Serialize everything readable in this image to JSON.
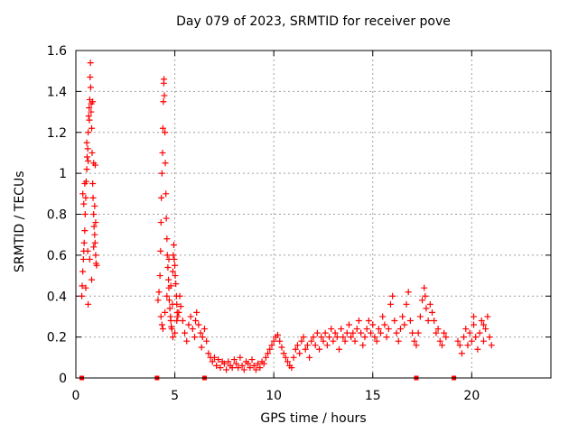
{
  "chart_data": {
    "type": "scatter",
    "title": "Day 079 of 2023, SRMTID for receiver pove",
    "xlabel": "GPS time / hours",
    "ylabel": "SRMTID / TECUs",
    "xlim": [
      0,
      24
    ],
    "ylim": [
      0,
      1.6
    ],
    "xticks": [
      0,
      5,
      10,
      15,
      20
    ],
    "xtick_labels": [
      "0",
      "5",
      "10",
      "15",
      "20"
    ],
    "yticks": [
      0,
      0.2,
      0.4,
      0.6,
      0.8,
      1,
      1.2,
      1.4,
      1.6
    ],
    "ytick_labels": [
      "0",
      "0.2",
      "0.4",
      "0.6",
      "0.8",
      "1",
      "1.2",
      "1.4",
      "1.6"
    ],
    "grid": true,
    "marker": "+",
    "series_color": "#ff0000",
    "baseline_markers_x": [
      0.3,
      4.1,
      6.5,
      17.2,
      19.1
    ],
    "series": [
      {
        "name": "SRMTID",
        "points": [
          [
            0.3,
            0.4
          ],
          [
            0.32,
            0.45
          ],
          [
            0.35,
            0.52
          ],
          [
            0.38,
            0.58
          ],
          [
            0.4,
            0.62
          ],
          [
            0.42,
            0.66
          ],
          [
            0.45,
            0.72
          ],
          [
            0.47,
            0.8
          ],
          [
            0.5,
            0.88
          ],
          [
            0.52,
            0.96
          ],
          [
            0.55,
            1.02
          ],
          [
            0.57,
            1.08
          ],
          [
            0.6,
            1.12
          ],
          [
            0.62,
            1.2
          ],
          [
            0.65,
            1.28
          ],
          [
            0.67,
            1.32
          ],
          [
            0.7,
            1.36
          ],
          [
            0.72,
            1.47
          ],
          [
            0.74,
            1.54
          ],
          [
            0.75,
            1.42
          ],
          [
            0.77,
            1.3
          ],
          [
            0.8,
            1.22
          ],
          [
            0.82,
            1.1
          ],
          [
            0.85,
            0.95
          ],
          [
            0.87,
            0.88
          ],
          [
            0.9,
            0.8
          ],
          [
            0.92,
            0.74
          ],
          [
            0.95,
            0.7
          ],
          [
            0.97,
            0.66
          ],
          [
            1.0,
            0.6
          ],
          [
            1.02,
            0.56
          ],
          [
            1.05,
            0.55
          ],
          [
            0.35,
            0.9
          ],
          [
            0.45,
            0.95
          ],
          [
            0.55,
            1.15
          ],
          [
            0.62,
            1.06
          ],
          [
            0.68,
            1.26
          ],
          [
            0.78,
            1.34
          ],
          [
            0.85,
            1.35
          ],
          [
            0.9,
            1.05
          ],
          [
            0.95,
            0.84
          ],
          [
            1.0,
            0.76
          ],
          [
            0.6,
            0.62
          ],
          [
            0.7,
            0.58
          ],
          [
            0.8,
            0.48
          ],
          [
            0.5,
            0.44
          ],
          [
            0.62,
            0.36
          ],
          [
            0.9,
            0.64
          ],
          [
            0.98,
            1.04
          ],
          [
            0.4,
            0.85
          ],
          [
            4.15,
            0.38
          ],
          [
            4.2,
            0.42
          ],
          [
            4.25,
            0.5
          ],
          [
            4.28,
            0.62
          ],
          [
            4.3,
            0.76
          ],
          [
            4.32,
            0.88
          ],
          [
            4.35,
            1.0
          ],
          [
            4.38,
            1.1
          ],
          [
            4.4,
            1.22
          ],
          [
            4.42,
            1.35
          ],
          [
            4.44,
            1.44
          ],
          [
            4.45,
            1.46
          ],
          [
            4.47,
            1.38
          ],
          [
            4.5,
            1.2
          ],
          [
            4.52,
            1.05
          ],
          [
            4.55,
            0.9
          ],
          [
            4.57,
            0.78
          ],
          [
            4.6,
            0.68
          ],
          [
            4.62,
            0.6
          ],
          [
            4.65,
            0.54
          ],
          [
            4.68,
            0.48
          ],
          [
            4.7,
            0.44
          ],
          [
            4.72,
            0.38
          ],
          [
            4.75,
            0.34
          ],
          [
            4.78,
            0.3
          ],
          [
            4.8,
            0.28
          ],
          [
            4.82,
            0.25
          ],
          [
            4.85,
            0.24
          ],
          [
            4.88,
            0.36
          ],
          [
            4.9,
            0.52
          ],
          [
            4.92,
            0.6
          ],
          [
            4.95,
            0.65
          ],
          [
            4.97,
            0.58
          ],
          [
            5.0,
            0.55
          ],
          [
            5.02,
            0.5
          ],
          [
            5.05,
            0.46
          ],
          [
            5.08,
            0.4
          ],
          [
            5.1,
            0.36
          ],
          [
            5.12,
            0.32
          ],
          [
            5.15,
            0.3
          ],
          [
            4.3,
            0.3
          ],
          [
            4.35,
            0.26
          ],
          [
            4.4,
            0.24
          ],
          [
            4.5,
            0.32
          ],
          [
            4.6,
            0.4
          ],
          [
            4.7,
            0.58
          ],
          [
            4.8,
            0.45
          ],
          [
            4.9,
            0.2
          ],
          [
            5.0,
            0.22
          ],
          [
            5.1,
            0.28
          ],
          [
            5.2,
            0.32
          ],
          [
            5.25,
            0.4
          ],
          [
            5.3,
            0.35
          ],
          [
            5.4,
            0.28
          ],
          [
            5.5,
            0.22
          ],
          [
            5.6,
            0.18
          ],
          [
            5.7,
            0.26
          ],
          [
            5.8,
            0.3
          ],
          [
            5.9,
            0.24
          ],
          [
            6.0,
            0.2
          ],
          [
            6.05,
            0.28
          ],
          [
            6.1,
            0.32
          ],
          [
            6.2,
            0.26
          ],
          [
            6.3,
            0.22
          ],
          [
            6.35,
            0.15
          ],
          [
            6.4,
            0.2
          ],
          [
            6.5,
            0.24
          ],
          [
            6.6,
            0.18
          ],
          [
            6.7,
            0.12
          ],
          [
            6.8,
            0.1
          ],
          [
            6.9,
            0.08
          ],
          [
            7.0,
            0.1
          ],
          [
            7.1,
            0.06
          ],
          [
            7.2,
            0.09
          ],
          [
            7.3,
            0.05
          ],
          [
            7.4,
            0.08
          ],
          [
            7.5,
            0.07
          ],
          [
            7.6,
            0.04
          ],
          [
            7.7,
            0.08
          ],
          [
            7.8,
            0.06
          ],
          [
            7.9,
            0.05
          ],
          [
            8.0,
            0.09
          ],
          [
            8.1,
            0.07
          ],
          [
            8.2,
            0.05
          ],
          [
            8.3,
            0.1
          ],
          [
            8.4,
            0.06
          ],
          [
            8.5,
            0.04
          ],
          [
            8.6,
            0.08
          ],
          [
            8.7,
            0.07
          ],
          [
            8.8,
            0.05
          ],
          [
            8.9,
            0.09
          ],
          [
            9.0,
            0.06
          ],
          [
            9.1,
            0.04
          ],
          [
            9.2,
            0.07
          ],
          [
            9.3,
            0.05
          ],
          [
            9.4,
            0.08
          ],
          [
            9.5,
            0.07
          ],
          [
            9.6,
            0.1
          ],
          [
            9.7,
            0.12
          ],
          [
            9.8,
            0.14
          ],
          [
            9.9,
            0.16
          ],
          [
            10.0,
            0.18
          ],
          [
            10.1,
            0.2
          ],
          [
            10.2,
            0.21
          ],
          [
            10.3,
            0.18
          ],
          [
            10.4,
            0.15
          ],
          [
            10.5,
            0.12
          ],
          [
            10.6,
            0.1
          ],
          [
            10.7,
            0.08
          ],
          [
            10.8,
            0.06
          ],
          [
            10.9,
            0.05
          ],
          [
            11.0,
            0.1
          ],
          [
            11.1,
            0.14
          ],
          [
            11.2,
            0.16
          ],
          [
            11.3,
            0.12
          ],
          [
            11.4,
            0.18
          ],
          [
            11.5,
            0.2
          ],
          [
            11.6,
            0.14
          ],
          [
            11.7,
            0.16
          ],
          [
            11.8,
            0.1
          ],
          [
            11.9,
            0.18
          ],
          [
            12.0,
            0.2
          ],
          [
            12.1,
            0.16
          ],
          [
            12.2,
            0.22
          ],
          [
            12.3,
            0.14
          ],
          [
            12.4,
            0.2
          ],
          [
            12.5,
            0.18
          ],
          [
            12.6,
            0.22
          ],
          [
            12.7,
            0.16
          ],
          [
            12.8,
            0.2
          ],
          [
            12.9,
            0.24
          ],
          [
            13.0,
            0.18
          ],
          [
            13.1,
            0.22
          ],
          [
            13.2,
            0.2
          ],
          [
            13.3,
            0.14
          ],
          [
            13.4,
            0.24
          ],
          [
            13.5,
            0.2
          ],
          [
            13.6,
            0.18
          ],
          [
            13.7,
            0.22
          ],
          [
            13.8,
            0.26
          ],
          [
            13.9,
            0.2
          ],
          [
            14.0,
            0.22
          ],
          [
            14.1,
            0.18
          ],
          [
            14.2,
            0.24
          ],
          [
            14.3,
            0.28
          ],
          [
            14.4,
            0.22
          ],
          [
            14.5,
            0.16
          ],
          [
            14.6,
            0.2
          ],
          [
            14.7,
            0.24
          ],
          [
            14.8,
            0.28
          ],
          [
            14.9,
            0.22
          ],
          [
            15.0,
            0.26
          ],
          [
            15.1,
            0.2
          ],
          [
            15.2,
            0.18
          ],
          [
            15.3,
            0.24
          ],
          [
            15.4,
            0.22
          ],
          [
            15.5,
            0.3
          ],
          [
            15.6,
            0.26
          ],
          [
            15.7,
            0.2
          ],
          [
            15.8,
            0.24
          ],
          [
            15.9,
            0.36
          ],
          [
            16.0,
            0.4
          ],
          [
            16.1,
            0.28
          ],
          [
            16.2,
            0.22
          ],
          [
            16.3,
            0.18
          ],
          [
            16.4,
            0.24
          ],
          [
            16.5,
            0.3
          ],
          [
            16.6,
            0.26
          ],
          [
            16.7,
            0.36
          ],
          [
            16.8,
            0.42
          ],
          [
            16.9,
            0.28
          ],
          [
            17.0,
            0.22
          ],
          [
            17.1,
            0.18
          ],
          [
            17.2,
            0.16
          ],
          [
            17.3,
            0.22
          ],
          [
            17.4,
            0.3
          ],
          [
            17.5,
            0.38
          ],
          [
            17.6,
            0.44
          ],
          [
            17.65,
            0.4
          ],
          [
            17.7,
            0.34
          ],
          [
            17.8,
            0.28
          ],
          [
            17.9,
            0.36
          ],
          [
            18.0,
            0.32
          ],
          [
            18.1,
            0.28
          ],
          [
            18.2,
            0.22
          ],
          [
            18.3,
            0.24
          ],
          [
            18.4,
            0.18
          ],
          [
            18.5,
            0.16
          ],
          [
            18.6,
            0.22
          ],
          [
            18.7,
            0.2
          ],
          [
            19.3,
            0.18
          ],
          [
            19.4,
            0.16
          ],
          [
            19.5,
            0.12
          ],
          [
            19.6,
            0.2
          ],
          [
            19.7,
            0.24
          ],
          [
            19.8,
            0.16
          ],
          [
            19.9,
            0.22
          ],
          [
            20.0,
            0.18
          ],
          [
            20.1,
            0.26
          ],
          [
            20.2,
            0.2
          ],
          [
            20.3,
            0.14
          ],
          [
            20.4,
            0.22
          ],
          [
            20.5,
            0.28
          ],
          [
            20.6,
            0.18
          ],
          [
            20.7,
            0.24
          ],
          [
            20.8,
            0.3
          ],
          [
            20.9,
            0.2
          ],
          [
            21.0,
            0.16
          ],
          [
            20.1,
            0.3
          ],
          [
            20.6,
            0.26
          ]
        ]
      }
    ]
  }
}
